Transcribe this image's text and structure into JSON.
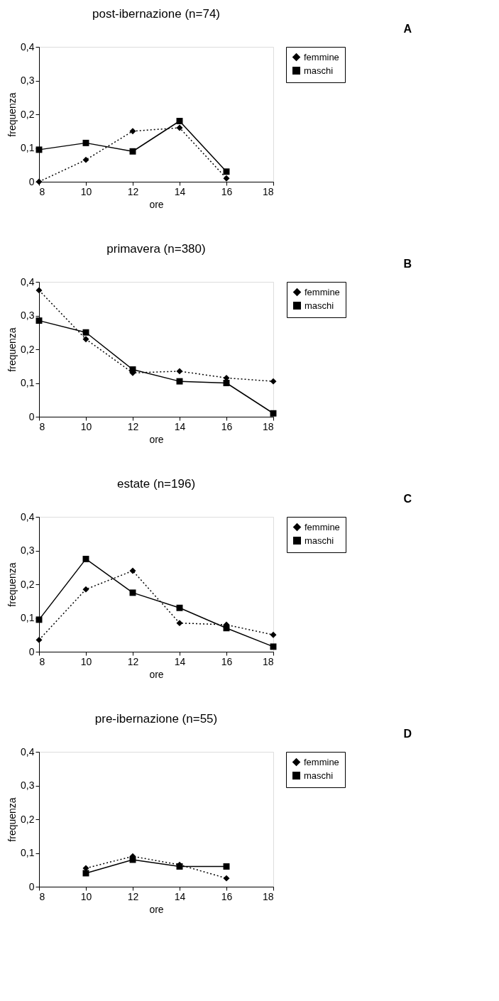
{
  "chart_data": [
    {
      "type": "line",
      "title": "post-ibernazione (n=74)",
      "xlabel": "ore",
      "ylabel": "frequenza",
      "annotations": [
        "A"
      ],
      "x": [
        8,
        10,
        12,
        14,
        16
      ],
      "series": [
        {
          "name": "femmine",
          "color": "#000000",
          "marker": "diamond",
          "line_style": "dotted",
          "values": [
            0,
            0.065,
            0.15,
            0.16,
            0.01
          ]
        },
        {
          "name": "maschi",
          "color": "#000000",
          "marker": "square",
          "line_style": "solid",
          "values": [
            0.095,
            0.115,
            0.09,
            0.18,
            0.03
          ]
        }
      ],
      "xlim": [
        8,
        18
      ],
      "xticks": [
        8,
        10,
        12,
        14,
        16,
        18
      ],
      "ylim": [
        0,
        0.4
      ],
      "yticks": [
        {
          "value": 0,
          "label": "0"
        },
        {
          "value": 0.1,
          "label": "0,1"
        },
        {
          "value": 0.2,
          "label": "0,2"
        },
        {
          "value": 0.3,
          "label": "0,3"
        },
        {
          "value": 0.4,
          "label": "0,4"
        }
      ],
      "grid": false,
      "legend": "right"
    },
    {
      "type": "line",
      "title": "primavera (n=380)",
      "xlabel": "ore",
      "ylabel": "frequenza",
      "annotations": [
        "B"
      ],
      "x": [
        8,
        10,
        12,
        14,
        16,
        18
      ],
      "series": [
        {
          "name": "femmine",
          "color": "#000000",
          "marker": "diamond",
          "line_style": "dotted",
          "values": [
            0.375,
            0.23,
            0.13,
            0.135,
            0.115,
            0.105
          ]
        },
        {
          "name": "maschi",
          "color": "#000000",
          "marker": "square",
          "line_style": "solid",
          "values": [
            0.285,
            0.25,
            0.14,
            0.105,
            0.1,
            0.01
          ]
        }
      ],
      "xlim": [
        8,
        18
      ],
      "xticks": [
        8,
        10,
        12,
        14,
        16,
        18
      ],
      "ylim": [
        0,
        0.4
      ],
      "yticks": [
        {
          "value": 0,
          "label": "0"
        },
        {
          "value": 0.1,
          "label": "0,1"
        },
        {
          "value": 0.2,
          "label": "0,2"
        },
        {
          "value": 0.3,
          "label": "0,3"
        },
        {
          "value": 0.4,
          "label": "0,4"
        }
      ],
      "grid": false,
      "legend": "right"
    },
    {
      "type": "line",
      "title": "estate (n=196)",
      "xlabel": "ore",
      "ylabel": "frequenza",
      "annotations": [
        "C"
      ],
      "x": [
        8,
        10,
        12,
        14,
        16,
        18
      ],
      "series": [
        {
          "name": "femmine",
          "color": "#000000",
          "marker": "diamond",
          "line_style": "dotted",
          "values": [
            0.035,
            0.185,
            0.24,
            0.085,
            0.08,
            0.05
          ]
        },
        {
          "name": "maschi",
          "color": "#000000",
          "marker": "square",
          "line_style": "solid",
          "values": [
            0.095,
            0.275,
            0.175,
            0.13,
            0.07,
            0.015
          ]
        }
      ],
      "xlim": [
        8,
        18
      ],
      "xticks": [
        8,
        10,
        12,
        14,
        16,
        18
      ],
      "ylim": [
        0,
        0.4
      ],
      "yticks": [
        {
          "value": 0,
          "label": "0"
        },
        {
          "value": 0.1,
          "label": "0,1"
        },
        {
          "value": 0.2,
          "label": "0,2"
        },
        {
          "value": 0.3,
          "label": "0,3"
        },
        {
          "value": 0.4,
          "label": "0,4"
        }
      ],
      "grid": false,
      "legend": "right"
    },
    {
      "type": "line",
      "title": "pre-ibernazione (n=55)",
      "xlabel": "ore",
      "ylabel": "frequenza",
      "annotations": [
        "D"
      ],
      "x": [
        10,
        12,
        14,
        16
      ],
      "series": [
        {
          "name": "femmine",
          "color": "#000000",
          "marker": "diamond",
          "line_style": "dotted",
          "values": [
            0.055,
            0.09,
            0.065,
            0.025
          ]
        },
        {
          "name": "maschi",
          "color": "#000000",
          "marker": "square",
          "line_style": "solid",
          "values": [
            0.04,
            0.08,
            0.06,
            0.06
          ]
        }
      ],
      "xlim": [
        8,
        18
      ],
      "xticks": [
        8,
        10,
        12,
        14,
        16,
        18
      ],
      "ylim": [
        0,
        0.4
      ],
      "yticks": [
        {
          "value": 0,
          "label": "0"
        },
        {
          "value": 0.1,
          "label": "0,1"
        },
        {
          "value": 0.2,
          "label": "0,2"
        },
        {
          "value": 0.3,
          "label": "0,3"
        },
        {
          "value": 0.4,
          "label": "0,4"
        }
      ],
      "grid": false,
      "legend": "right"
    }
  ]
}
